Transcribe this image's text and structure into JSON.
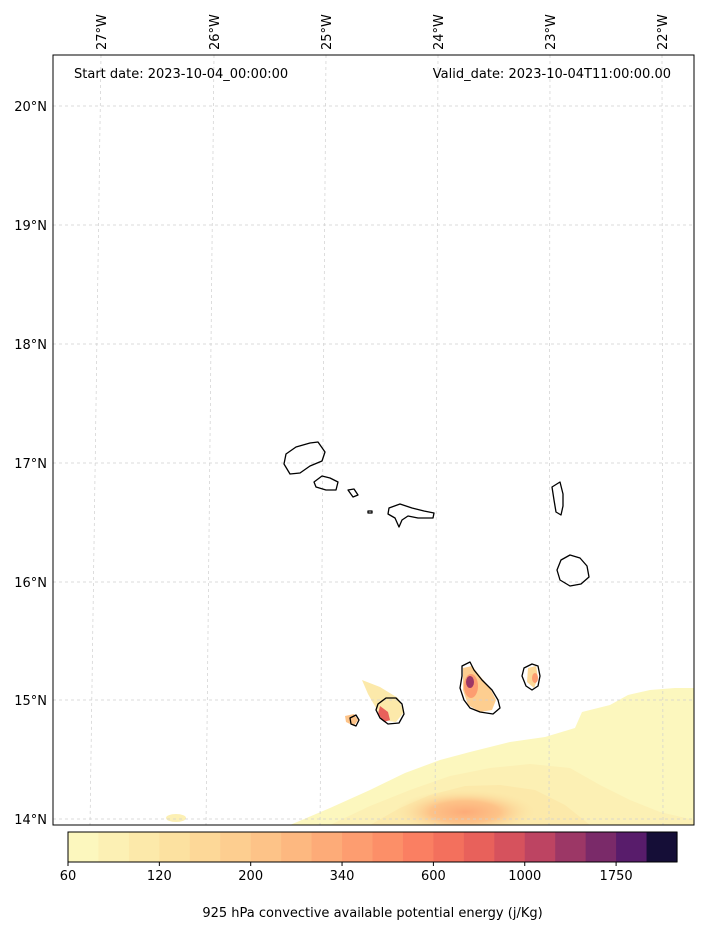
{
  "map": {
    "start_label": "Start date: 2023-10-04_00:00:00",
    "valid_label": "Valid_date: 2023-10-04T11:00:00.00",
    "lon_labels": [
      "27°W",
      "26°W",
      "25°W",
      "24°W",
      "23°W",
      "22°W"
    ],
    "lat_labels": [
      "20°N",
      "19°N",
      "18°N",
      "17°N",
      "16°N",
      "15°N",
      "14°N"
    ],
    "extent": {
      "lon_min": -27.35,
      "lon_max": -21.7,
      "lat_min": 13.95,
      "lat_max": 20.4
    },
    "field_name": "925 hPa convective available potential energy",
    "field_units": "j/Kg"
  },
  "colorbar": {
    "label": "925 hPa convective available potential energy (j/Kg)",
    "tick_labels": [
      "60",
      "120",
      "200",
      "340",
      "600",
      "1000",
      "1750"
    ],
    "colors": [
      "#fcf7be",
      "#fcf0b4",
      "#fce9aa",
      "#fce1a0",
      "#fdd898",
      "#fdce90",
      "#fdc388",
      "#fdb880",
      "#fdab78",
      "#fd9d70",
      "#fc8f68",
      "#fa7f62",
      "#f3705d",
      "#e8615b",
      "#d6525d",
      "#bd4462",
      "#9c3766",
      "#7a2a69",
      "#581c6b",
      "#150e37"
    ],
    "colormap": "magma_r"
  }
}
